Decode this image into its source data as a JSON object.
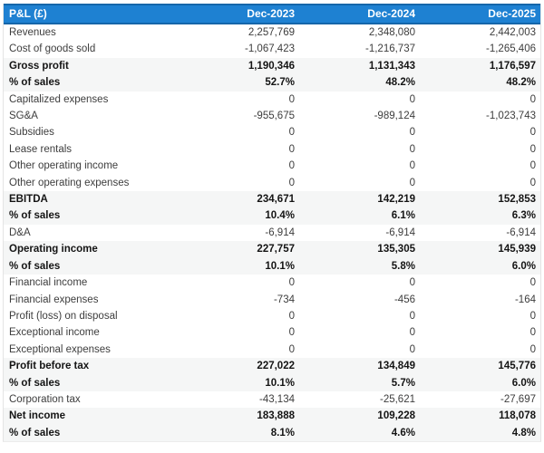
{
  "colors": {
    "header_bg": "#1e81d2",
    "header_border": "#1566a9",
    "header_text": "#ffffff",
    "summary_band_bg": "#f5f6f6",
    "table_border": "#e4e4e4",
    "text_regular": "#3d3d3d",
    "text_bold": "#141414"
  },
  "table": {
    "title": "P&L (£)",
    "columns": [
      "Dec-2023",
      "Dec-2024",
      "Dec-2025"
    ],
    "rows": [
      {
        "label": "Revenues",
        "values": [
          "2,257,769",
          "2,348,080",
          "2,442,003"
        ],
        "emphasis": false
      },
      {
        "label": "Cost of goods sold",
        "values": [
          "-1,067,423",
          "-1,216,737",
          "-1,265,406"
        ],
        "emphasis": false
      },
      {
        "label": "Gross profit",
        "values": [
          "1,190,346",
          "1,131,343",
          "1,176,597"
        ],
        "emphasis": true
      },
      {
        "label": "% of sales",
        "values": [
          "52.7%",
          "48.2%",
          "48.2%"
        ],
        "emphasis": true
      },
      {
        "label": "Capitalized expenses",
        "values": [
          "0",
          "0",
          "0"
        ],
        "emphasis": false
      },
      {
        "label": "SG&A",
        "values": [
          "-955,675",
          "-989,124",
          "-1,023,743"
        ],
        "emphasis": false
      },
      {
        "label": "Subsidies",
        "values": [
          "0",
          "0",
          "0"
        ],
        "emphasis": false
      },
      {
        "label": "Lease rentals",
        "values": [
          "0",
          "0",
          "0"
        ],
        "emphasis": false
      },
      {
        "label": "Other operating income",
        "values": [
          "0",
          "0",
          "0"
        ],
        "emphasis": false
      },
      {
        "label": "Other operating expenses",
        "values": [
          "0",
          "0",
          "0"
        ],
        "emphasis": false
      },
      {
        "label": "EBITDA",
        "values": [
          "234,671",
          "142,219",
          "152,853"
        ],
        "emphasis": true
      },
      {
        "label": "% of sales",
        "values": [
          "10.4%",
          "6.1%",
          "6.3%"
        ],
        "emphasis": true
      },
      {
        "label": "D&A",
        "values": [
          "-6,914",
          "-6,914",
          "-6,914"
        ],
        "emphasis": false
      },
      {
        "label": "Operating income",
        "values": [
          "227,757",
          "135,305",
          "145,939"
        ],
        "emphasis": true
      },
      {
        "label": "% of sales",
        "values": [
          "10.1%",
          "5.8%",
          "6.0%"
        ],
        "emphasis": true
      },
      {
        "label": "Financial income",
        "values": [
          "0",
          "0",
          "0"
        ],
        "emphasis": false
      },
      {
        "label": "Financial expenses",
        "values": [
          "-734",
          "-456",
          "-164"
        ],
        "emphasis": false
      },
      {
        "label": "Profit (loss) on disposal",
        "values": [
          "0",
          "0",
          "0"
        ],
        "emphasis": false
      },
      {
        "label": "Exceptional income",
        "values": [
          "0",
          "0",
          "0"
        ],
        "emphasis": false
      },
      {
        "label": "Exceptional expenses",
        "values": [
          "0",
          "0",
          "0"
        ],
        "emphasis": false
      },
      {
        "label": "Profit before tax",
        "values": [
          "227,022",
          "134,849",
          "145,776"
        ],
        "emphasis": true
      },
      {
        "label": "% of sales",
        "values": [
          "10.1%",
          "5.7%",
          "6.0%"
        ],
        "emphasis": true
      },
      {
        "label": "Corporation tax",
        "values": [
          "-43,134",
          "-25,621",
          "-27,697"
        ],
        "emphasis": false
      },
      {
        "label": "Net income",
        "values": [
          "183,888",
          "109,228",
          "118,078"
        ],
        "emphasis": true
      },
      {
        "label": "% of sales",
        "values": [
          "8.1%",
          "4.6%",
          "4.8%"
        ],
        "emphasis": true
      }
    ]
  }
}
